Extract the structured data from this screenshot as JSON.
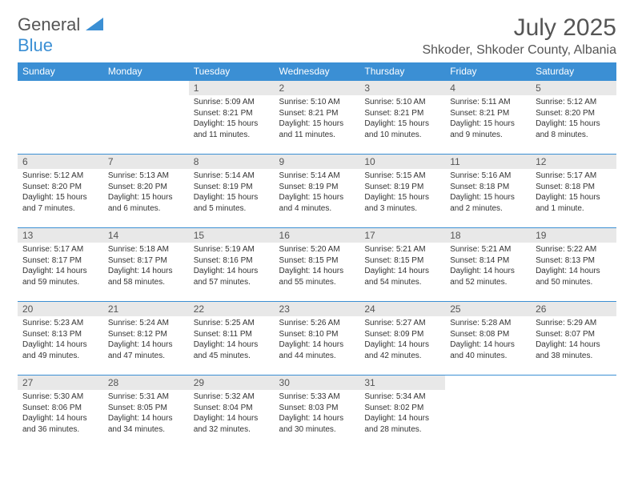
{
  "logo": {
    "general": "General",
    "blue": "Blue"
  },
  "header": {
    "month_title": "July 2025",
    "location": "Shkoder, Shkoder County, Albania"
  },
  "colors": {
    "header_bg": "#3b8fd4",
    "header_text": "#ffffff",
    "daynum_bg": "#e8e8e8",
    "border": "#3b8fd4",
    "text": "#333333",
    "title_text": "#555555"
  },
  "weekdays": [
    "Sunday",
    "Monday",
    "Tuesday",
    "Wednesday",
    "Thursday",
    "Friday",
    "Saturday"
  ],
  "weeks": [
    [
      null,
      null,
      {
        "n": "1",
        "sr": "Sunrise: 5:09 AM",
        "ss": "Sunset: 8:21 PM",
        "dl1": "Daylight: 15 hours",
        "dl2": "and 11 minutes."
      },
      {
        "n": "2",
        "sr": "Sunrise: 5:10 AM",
        "ss": "Sunset: 8:21 PM",
        "dl1": "Daylight: 15 hours",
        "dl2": "and 11 minutes."
      },
      {
        "n": "3",
        "sr": "Sunrise: 5:10 AM",
        "ss": "Sunset: 8:21 PM",
        "dl1": "Daylight: 15 hours",
        "dl2": "and 10 minutes."
      },
      {
        "n": "4",
        "sr": "Sunrise: 5:11 AM",
        "ss": "Sunset: 8:21 PM",
        "dl1": "Daylight: 15 hours",
        "dl2": "and 9 minutes."
      },
      {
        "n": "5",
        "sr": "Sunrise: 5:12 AM",
        "ss": "Sunset: 8:20 PM",
        "dl1": "Daylight: 15 hours",
        "dl2": "and 8 minutes."
      }
    ],
    [
      {
        "n": "6",
        "sr": "Sunrise: 5:12 AM",
        "ss": "Sunset: 8:20 PM",
        "dl1": "Daylight: 15 hours",
        "dl2": "and 7 minutes."
      },
      {
        "n": "7",
        "sr": "Sunrise: 5:13 AM",
        "ss": "Sunset: 8:20 PM",
        "dl1": "Daylight: 15 hours",
        "dl2": "and 6 minutes."
      },
      {
        "n": "8",
        "sr": "Sunrise: 5:14 AM",
        "ss": "Sunset: 8:19 PM",
        "dl1": "Daylight: 15 hours",
        "dl2": "and 5 minutes."
      },
      {
        "n": "9",
        "sr": "Sunrise: 5:14 AM",
        "ss": "Sunset: 8:19 PM",
        "dl1": "Daylight: 15 hours",
        "dl2": "and 4 minutes."
      },
      {
        "n": "10",
        "sr": "Sunrise: 5:15 AM",
        "ss": "Sunset: 8:19 PM",
        "dl1": "Daylight: 15 hours",
        "dl2": "and 3 minutes."
      },
      {
        "n": "11",
        "sr": "Sunrise: 5:16 AM",
        "ss": "Sunset: 8:18 PM",
        "dl1": "Daylight: 15 hours",
        "dl2": "and 2 minutes."
      },
      {
        "n": "12",
        "sr": "Sunrise: 5:17 AM",
        "ss": "Sunset: 8:18 PM",
        "dl1": "Daylight: 15 hours",
        "dl2": "and 1 minute."
      }
    ],
    [
      {
        "n": "13",
        "sr": "Sunrise: 5:17 AM",
        "ss": "Sunset: 8:17 PM",
        "dl1": "Daylight: 14 hours",
        "dl2": "and 59 minutes."
      },
      {
        "n": "14",
        "sr": "Sunrise: 5:18 AM",
        "ss": "Sunset: 8:17 PM",
        "dl1": "Daylight: 14 hours",
        "dl2": "and 58 minutes."
      },
      {
        "n": "15",
        "sr": "Sunrise: 5:19 AM",
        "ss": "Sunset: 8:16 PM",
        "dl1": "Daylight: 14 hours",
        "dl2": "and 57 minutes."
      },
      {
        "n": "16",
        "sr": "Sunrise: 5:20 AM",
        "ss": "Sunset: 8:15 PM",
        "dl1": "Daylight: 14 hours",
        "dl2": "and 55 minutes."
      },
      {
        "n": "17",
        "sr": "Sunrise: 5:21 AM",
        "ss": "Sunset: 8:15 PM",
        "dl1": "Daylight: 14 hours",
        "dl2": "and 54 minutes."
      },
      {
        "n": "18",
        "sr": "Sunrise: 5:21 AM",
        "ss": "Sunset: 8:14 PM",
        "dl1": "Daylight: 14 hours",
        "dl2": "and 52 minutes."
      },
      {
        "n": "19",
        "sr": "Sunrise: 5:22 AM",
        "ss": "Sunset: 8:13 PM",
        "dl1": "Daylight: 14 hours",
        "dl2": "and 50 minutes."
      }
    ],
    [
      {
        "n": "20",
        "sr": "Sunrise: 5:23 AM",
        "ss": "Sunset: 8:13 PM",
        "dl1": "Daylight: 14 hours",
        "dl2": "and 49 minutes."
      },
      {
        "n": "21",
        "sr": "Sunrise: 5:24 AM",
        "ss": "Sunset: 8:12 PM",
        "dl1": "Daylight: 14 hours",
        "dl2": "and 47 minutes."
      },
      {
        "n": "22",
        "sr": "Sunrise: 5:25 AM",
        "ss": "Sunset: 8:11 PM",
        "dl1": "Daylight: 14 hours",
        "dl2": "and 45 minutes."
      },
      {
        "n": "23",
        "sr": "Sunrise: 5:26 AM",
        "ss": "Sunset: 8:10 PM",
        "dl1": "Daylight: 14 hours",
        "dl2": "and 44 minutes."
      },
      {
        "n": "24",
        "sr": "Sunrise: 5:27 AM",
        "ss": "Sunset: 8:09 PM",
        "dl1": "Daylight: 14 hours",
        "dl2": "and 42 minutes."
      },
      {
        "n": "25",
        "sr": "Sunrise: 5:28 AM",
        "ss": "Sunset: 8:08 PM",
        "dl1": "Daylight: 14 hours",
        "dl2": "and 40 minutes."
      },
      {
        "n": "26",
        "sr": "Sunrise: 5:29 AM",
        "ss": "Sunset: 8:07 PM",
        "dl1": "Daylight: 14 hours",
        "dl2": "and 38 minutes."
      }
    ],
    [
      {
        "n": "27",
        "sr": "Sunrise: 5:30 AM",
        "ss": "Sunset: 8:06 PM",
        "dl1": "Daylight: 14 hours",
        "dl2": "and 36 minutes."
      },
      {
        "n": "28",
        "sr": "Sunrise: 5:31 AM",
        "ss": "Sunset: 8:05 PM",
        "dl1": "Daylight: 14 hours",
        "dl2": "and 34 minutes."
      },
      {
        "n": "29",
        "sr": "Sunrise: 5:32 AM",
        "ss": "Sunset: 8:04 PM",
        "dl1": "Daylight: 14 hours",
        "dl2": "and 32 minutes."
      },
      {
        "n": "30",
        "sr": "Sunrise: 5:33 AM",
        "ss": "Sunset: 8:03 PM",
        "dl1": "Daylight: 14 hours",
        "dl2": "and 30 minutes."
      },
      {
        "n": "31",
        "sr": "Sunrise: 5:34 AM",
        "ss": "Sunset: 8:02 PM",
        "dl1": "Daylight: 14 hours",
        "dl2": "and 28 minutes."
      },
      null,
      null
    ]
  ]
}
